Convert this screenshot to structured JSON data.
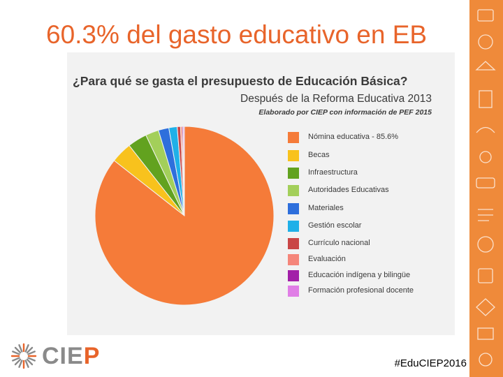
{
  "slide": {
    "title": "60.3% del gasto educativo en EB",
    "hashtag": "#EduCIEP2016",
    "logo_text": "CIEP",
    "logo_icon": "sunburst-icon",
    "side_icons": "education-doodle-icons"
  },
  "colors": {
    "accent": "#e8642a",
    "strip": "#ef8a3a",
    "logo_gray": "#8a8a8a",
    "panel": "#f2f2f2"
  },
  "chart_data": {
    "type": "pie",
    "title": "¿Para qué se gasta el presupuesto de Educación Básica?",
    "subtitle": "Después de la Reforma Educativa 2013",
    "source": "Elaborado por CIEP con información de PEF 2015",
    "legend_position": "right",
    "slices": [
      {
        "label": "Nómina educativa",
        "value": 85.6,
        "value_label": " - 85.6%",
        "color": "#f57b39"
      },
      {
        "label": "Becas",
        "value": 3.8,
        "color": "#f8c21d"
      },
      {
        "label": "Infraestructura",
        "value": 3.5,
        "color": "#62a21f"
      },
      {
        "label": "Autoridades Educativas",
        "value": 2.4,
        "color": "#a3cf5a"
      },
      {
        "label": "Materiales",
        "value": 1.9,
        "color": "#2e6fdc"
      },
      {
        "label": "Gestión escolar",
        "value": 1.5,
        "color": "#1fb0e8"
      },
      {
        "label": "Currículo nacional",
        "value": 0.6,
        "color": "#c94646"
      },
      {
        "label": "Evaluación",
        "value": 0.3,
        "color": "#f5867a"
      },
      {
        "label": "Educación indígena y bilingüe",
        "value": 0.2,
        "color": "#a21fa8"
      },
      {
        "label": "Formación profesional docente",
        "value": 0.2,
        "color": "#e07ee6"
      }
    ]
  }
}
